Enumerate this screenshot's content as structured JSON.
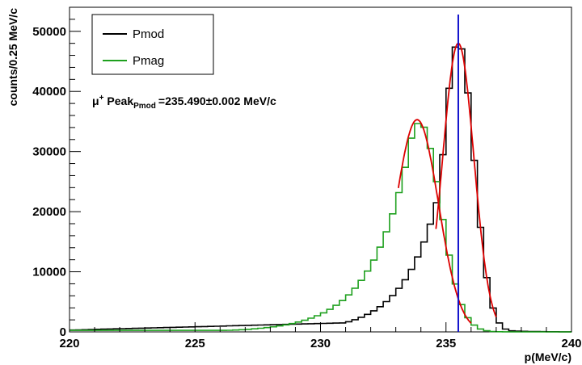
{
  "chart_data": {
    "type": "line",
    "xlabel": "p(MeV/c)",
    "ylabel": "counts/0.25 MeV/c",
    "xlim": [
      220,
      240
    ],
    "ylim": [
      0,
      54000
    ],
    "xticks": [
      220,
      225,
      230,
      235,
      240
    ],
    "yticks": [
      0,
      10000,
      20000,
      30000,
      40000,
      50000
    ],
    "grid": false,
    "legend": {
      "position": "top-left"
    },
    "annotation": {
      "mu": "μ",
      "mu_sup": "+",
      "peak": "Peak",
      "peak_sub": "Pmod",
      "value": "=235.490±0.002 MeV/c"
    },
    "bin_width": 0.25,
    "series": [
      {
        "name": "Pmod",
        "color": "#000000",
        "style": "histogram",
        "model": {
          "kind": "crystal-ball",
          "mu": 235.49,
          "sigma": 0.62,
          "peak": 48200,
          "tail_start": 1.2,
          "tail_k": 0.45,
          "left_floor": 300,
          "left_floor_slope": 110
        }
      },
      {
        "name": "Pmag",
        "color": "#1ea01e",
        "style": "histogram",
        "model": {
          "kind": "crystal-ball",
          "mu": 233.95,
          "sigma": 0.83,
          "peak": 34800,
          "tail_start": 0.7,
          "tail_k": 0.55,
          "left_floor": 250,
          "left_floor_slope": 0
        }
      }
    ],
    "fits": [
      {
        "color": "#dd0000",
        "mu": 235.49,
        "sigma": 0.62,
        "peak": 48000,
        "x_range": [
          234.6,
          237.0
        ]
      },
      {
        "color": "#dd0000",
        "mu": 233.85,
        "sigma": 0.85,
        "peak": 35300,
        "x_range": [
          233.1,
          236.0
        ]
      }
    ],
    "marker_line": {
      "x": 235.49,
      "color": "#1010cc"
    }
  }
}
